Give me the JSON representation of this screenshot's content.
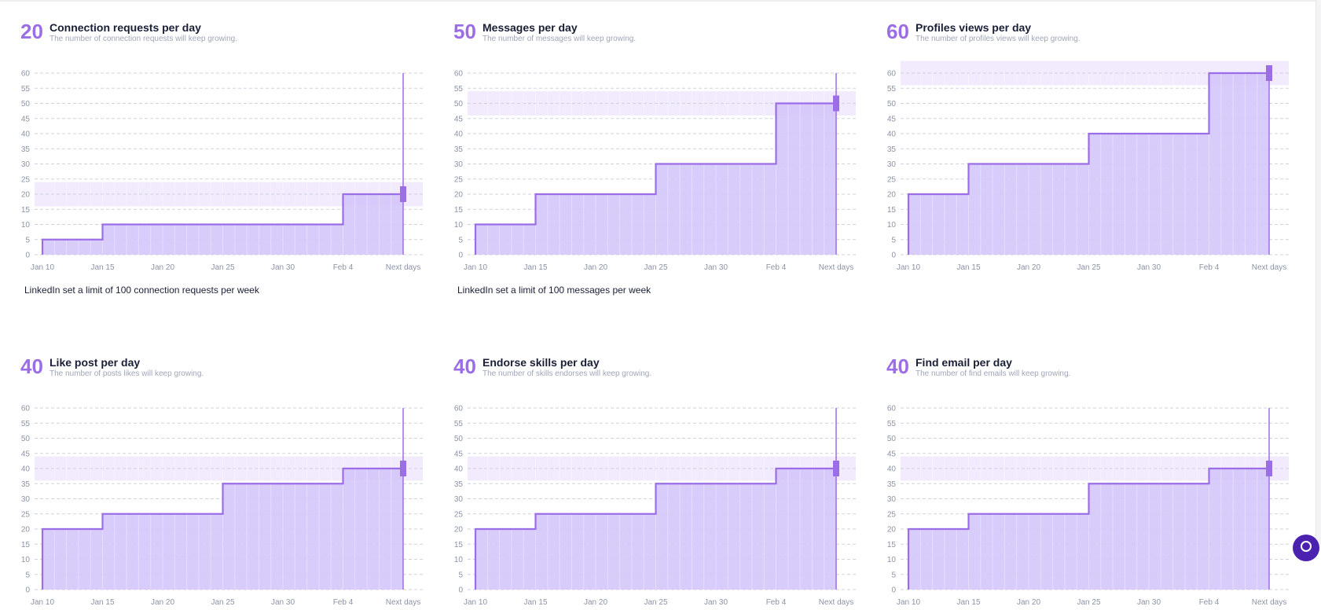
{
  "colors": {
    "accent": "#9b6ee8",
    "fill": "#d4c6fb",
    "band": "#f1ebfd",
    "grid": "#cfd2da",
    "title": "#1a1f36",
    "subtitle": "#a0a6b8"
  },
  "cards": [
    {
      "value": "20",
      "title": "Connection requests per day",
      "subtitle": "The number of connection requests will keep growing.",
      "note": "LinkedIn set a limit of 100 connection requests per week"
    },
    {
      "value": "50",
      "title": "Messages per day",
      "subtitle": "The number of messages will keep growing.",
      "note": "LinkedIn set a limit of 100 messages per week"
    },
    {
      "value": "60",
      "title": "Profiles views per day",
      "subtitle": "The number of profiles views will keep growing.",
      "note": ""
    },
    {
      "value": "40",
      "title": "Like post per day",
      "subtitle": "The number of posts likes will keep growing.",
      "note": ""
    },
    {
      "value": "40",
      "title": "Endorse skills per day",
      "subtitle": "The number of skills endorses will keep growing.",
      "note": ""
    },
    {
      "value": "40",
      "title": "Find email per day",
      "subtitle": "The number of find emails will keep growing.",
      "note": ""
    }
  ],
  "chart_data": [
    {
      "type": "area",
      "step": true,
      "x_labels": [
        "Jan 10",
        "Jan 15",
        "Jan 20",
        "Jan 25",
        "Jan 30",
        "Feb 4",
        "Next days"
      ],
      "x": [
        0,
        5,
        25,
        30
      ],
      "y": [
        5,
        10,
        20,
        20
      ],
      "ylim": [
        0,
        60
      ],
      "yticks": [
        0,
        5,
        10,
        15,
        20,
        25,
        30,
        35,
        40,
        45,
        50,
        55,
        60
      ],
      "limit": 20,
      "marker_x": 30,
      "grid": true
    },
    {
      "type": "area",
      "step": true,
      "x_labels": [
        "Jan 10",
        "Jan 15",
        "Jan 20",
        "Jan 25",
        "Jan 30",
        "Feb 4",
        "Next days"
      ],
      "x": [
        0,
        5,
        15,
        25,
        30
      ],
      "y": [
        10,
        20,
        30,
        50,
        50
      ],
      "ylim": [
        0,
        60
      ],
      "yticks": [
        0,
        5,
        10,
        15,
        20,
        25,
        30,
        35,
        40,
        45,
        50,
        55,
        60
      ],
      "limit": 50,
      "marker_x": 30,
      "grid": true
    },
    {
      "type": "area",
      "step": true,
      "x_labels": [
        "Jan 10",
        "Jan 15",
        "Jan 20",
        "Jan 25",
        "Jan 30",
        "Feb 4",
        "Next days"
      ],
      "x": [
        0,
        5,
        15,
        25,
        30
      ],
      "y": [
        20,
        30,
        40,
        60,
        60
      ],
      "ylim": [
        0,
        60
      ],
      "yticks": [
        0,
        5,
        10,
        15,
        20,
        25,
        30,
        35,
        40,
        45,
        50,
        55,
        60
      ],
      "limit": 60,
      "marker_x": 30,
      "grid": true
    },
    {
      "type": "area",
      "step": true,
      "x_labels": [
        "Jan 10",
        "Jan 15",
        "Jan 20",
        "Jan 25",
        "Jan 30",
        "Feb 4",
        "Next days"
      ],
      "x": [
        0,
        5,
        15,
        25,
        30
      ],
      "y": [
        20,
        25,
        35,
        40,
        40
      ],
      "ylim": [
        0,
        60
      ],
      "yticks": [
        0,
        5,
        10,
        15,
        20,
        25,
        30,
        35,
        40,
        45,
        50,
        55,
        60
      ],
      "limit": 40,
      "marker_x": 30,
      "grid": true
    },
    {
      "type": "area",
      "step": true,
      "x_labels": [
        "Jan 10",
        "Jan 15",
        "Jan 20",
        "Jan 25",
        "Jan 30",
        "Feb 4",
        "Next days"
      ],
      "x": [
        0,
        5,
        15,
        25,
        30
      ],
      "y": [
        20,
        25,
        35,
        40,
        40
      ],
      "ylim": [
        0,
        60
      ],
      "yticks": [
        0,
        5,
        10,
        15,
        20,
        25,
        30,
        35,
        40,
        45,
        50,
        55,
        60
      ],
      "limit": 40,
      "marker_x": 30,
      "grid": true
    },
    {
      "type": "area",
      "step": true,
      "x_labels": [
        "Jan 10",
        "Jan 15",
        "Jan 20",
        "Jan 25",
        "Jan 30",
        "Feb 4",
        "Next days"
      ],
      "x": [
        0,
        5,
        15,
        25,
        30
      ],
      "y": [
        20,
        25,
        35,
        40,
        40
      ],
      "ylim": [
        0,
        60
      ],
      "yticks": [
        0,
        5,
        10,
        15,
        20,
        25,
        30,
        35,
        40,
        45,
        50,
        55,
        60
      ],
      "limit": 40,
      "marker_x": 30,
      "grid": true
    }
  ]
}
